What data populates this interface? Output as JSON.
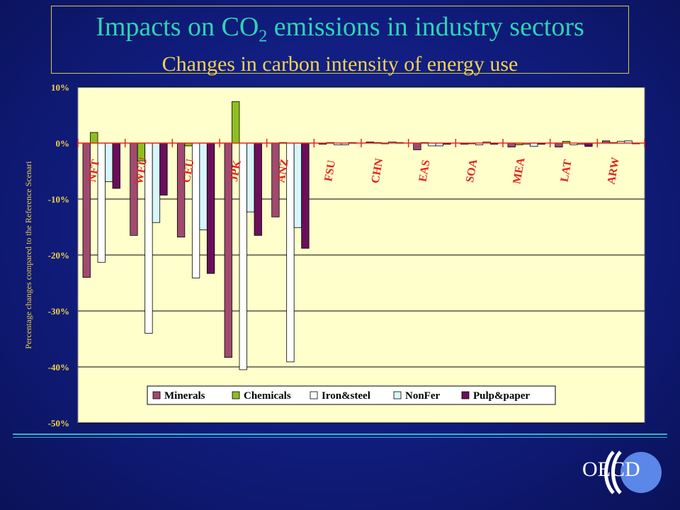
{
  "title_main": "Impacts on CO",
  "title_sub": "2",
  "title_tail": " emissions in industry sectors",
  "subtitle": "Changes in carbon intensity of energy use",
  "logo_text": "OECD",
  "chart_data": {
    "type": "bar",
    "ylabel": "Percentage changes compared to the Reference Scenari",
    "ylim": [
      -50,
      10
    ],
    "yticks": [
      "10%",
      "0%",
      "-10%",
      "-20%",
      "-30%",
      "-40%",
      "-50%"
    ],
    "ytick_values": [
      10,
      0,
      -10,
      -20,
      -30,
      -40,
      -50
    ],
    "grid": true,
    "legend_position": "bottom",
    "categories": [
      "NFT",
      "WEU",
      "CEU",
      "JPK",
      "ANZ",
      "FSU",
      "CHN",
      "EAS",
      "SOA",
      "MEA",
      "LAT",
      "ARW"
    ],
    "series": [
      {
        "name": "Minerals",
        "color": "#a14a6f",
        "values": [
          -24,
          -16.5,
          -16.8,
          -38.3,
          -13.2,
          -0.2,
          0.2,
          -1.2,
          -0.2,
          -0.7,
          -0.7,
          0.4
        ]
      },
      {
        "name": "Chemicals",
        "color": "#8fbe1f",
        "values": [
          1.9,
          -3.2,
          -0.5,
          7.4,
          0.1,
          0.1,
          0.1,
          0.1,
          -0.1,
          -0.3,
          0.3,
          0.1
        ]
      },
      {
        "name": "Iron&steel",
        "color": "#ffffff",
        "values": [
          -21.3,
          -34,
          -24.1,
          -40.5,
          -39.1,
          -0.3,
          -0.1,
          -0.5,
          -0.3,
          -0.2,
          -0.3,
          0.3
        ]
      },
      {
        "name": "NonFer",
        "color": "#d7f6fc",
        "values": [
          -6.9,
          -14.2,
          -15.5,
          -12.3,
          -15.1,
          -0.3,
          0.2,
          -0.5,
          0.2,
          -0.6,
          -0.2,
          0.4
        ]
      },
      {
        "name": "Pulp&paper",
        "color": "#6a0f5a",
        "values": [
          -8.1,
          -9.3,
          -23.3,
          -16.5,
          -18.8,
          0.1,
          0.1,
          -0.2,
          -0.2,
          -0.2,
          -0.6,
          -0.1
        ]
      }
    ]
  }
}
